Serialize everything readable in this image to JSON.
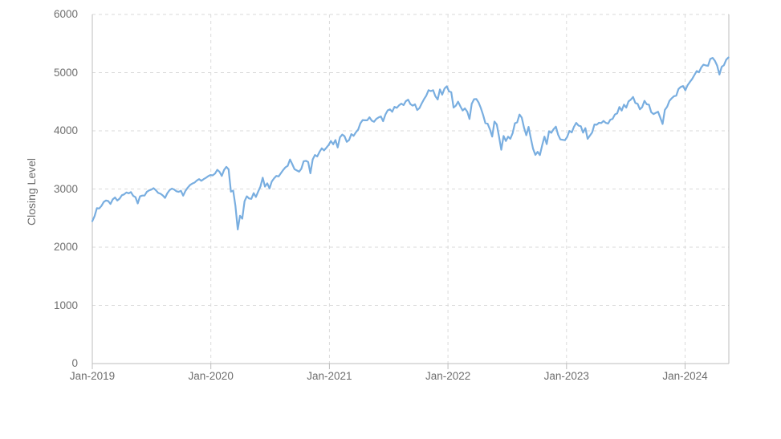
{
  "colors": {
    "line": "#79aee0",
    "grid": "#dadada",
    "axis": "#bdbdbd",
    "text": "#6e6e6e",
    "background": "#ffffff"
  },
  "chart_data": {
    "type": "line",
    "title": "",
    "xlabel": "",
    "ylabel": "Closing Level",
    "ylim": [
      0,
      6000
    ],
    "xlim_years": [
      "Jan-2019",
      "May-2024"
    ],
    "grid": "dashed horizontal lines at every 1000 and dashed vertical lines at each January tick",
    "legend": "none",
    "y_ticks": [
      0,
      1000,
      2000,
      3000,
      4000,
      5000,
      6000
    ],
    "y_tick_labels": [
      "0",
      "1000",
      "2000",
      "3000",
      "4000",
      "5000",
      "6000"
    ],
    "x_tick_labels": [
      "Jan-2019",
      "Jan-2020",
      "Jan-2021",
      "Jan-2022",
      "Jan-2023",
      "Jan-2024"
    ],
    "series": [
      {
        "name": "Closing Level",
        "color": "#79aee0",
        "start": "Jan-2019",
        "interval_days": 7,
        "values": [
          2447,
          2532,
          2671,
          2665,
          2707,
          2776,
          2803,
          2793,
          2743,
          2822,
          2854,
          2801,
          2834,
          2893,
          2907,
          2940,
          2926,
          2946,
          2881,
          2860,
          2752,
          2873,
          2887,
          2887,
          2950,
          2976,
          2990,
          3014,
          2977,
          2932,
          2918,
          2889,
          2847,
          2926,
          2979,
          3007,
          2992,
          2962,
          2952,
          2970,
          2886,
          2970,
          3023,
          3067,
          3093,
          3110,
          3146,
          3169,
          3141,
          3169,
          3192,
          3221,
          3240,
          3235,
          3265,
          3330,
          3295,
          3225,
          3328,
          3380,
          3338,
          2954,
          2972,
          2711,
          2305,
          2541,
          2489,
          2790,
          2875,
          2837,
          2831,
          2930,
          2864,
          2955,
          3044,
          3194,
          3041,
          3098,
          3009,
          3130,
          3185,
          3225,
          3216,
          3271,
          3327,
          3373,
          3397,
          3508,
          3427,
          3341,
          3319,
          3298,
          3348,
          3477,
          3484,
          3465,
          3270,
          3509,
          3585,
          3558,
          3638,
          3699,
          3663,
          3709,
          3756,
          3825,
          3768,
          3841,
          3714,
          3887,
          3935,
          3907,
          3811,
          3842,
          3943,
          3913,
          3975,
          4020,
          4129,
          4185,
          4180,
          4181,
          4233,
          4174,
          4156,
          4204,
          4230,
          4247,
          4166,
          4281,
          4352,
          4370,
          4327,
          4412,
          4395,
          4437,
          4468,
          4442,
          4509,
          4535,
          4459,
          4433,
          4455,
          4357,
          4391,
          4471,
          4545,
          4605,
          4698,
          4683,
          4698,
          4595,
          4538,
          4712,
          4621,
          4726,
          4766,
          4677,
          4663,
          4398,
          4432,
          4501,
          4419,
          4349,
          4385,
          4329,
          4204,
          4463,
          4543,
          4546,
          4488,
          4393,
          4272,
          4132,
          4123,
          4024,
          3901,
          4158,
          4109,
          3901,
          3675,
          3912,
          3825,
          3899,
          3863,
          3962,
          4130,
          4145,
          4280,
          4228,
          4058,
          3924,
          4067,
          3873,
          3693,
          3586,
          3640,
          3583,
          3753,
          3901,
          3771,
          3993,
          3965,
          4026,
          4072,
          3934,
          3852,
          3845,
          3839,
          3895,
          3999,
          3973,
          4071,
          4136,
          4090,
          4079,
          3970,
          4046,
          3862,
          3917,
          3971,
          4109,
          4105,
          4138,
          4134,
          4169,
          4136,
          4124,
          4192,
          4205,
          4282,
          4299,
          4410,
          4348,
          4450,
          4399,
          4505,
          4536,
          4582,
          4478,
          4464,
          4370,
          4406,
          4516,
          4457,
          4450,
          4320,
          4288,
          4309,
          4328,
          4224,
          4117,
          4358,
          4415,
          4514,
          4559,
          4594,
          4604,
          4719,
          4754,
          4770,
          4697,
          4784,
          4840,
          4891,
          4959,
          5027,
          5006,
          5088,
          5137,
          5124,
          5117,
          5234,
          5254,
          5204,
          5123,
          4967,
          5100,
          5128,
          5223,
          5260
        ]
      }
    ]
  }
}
